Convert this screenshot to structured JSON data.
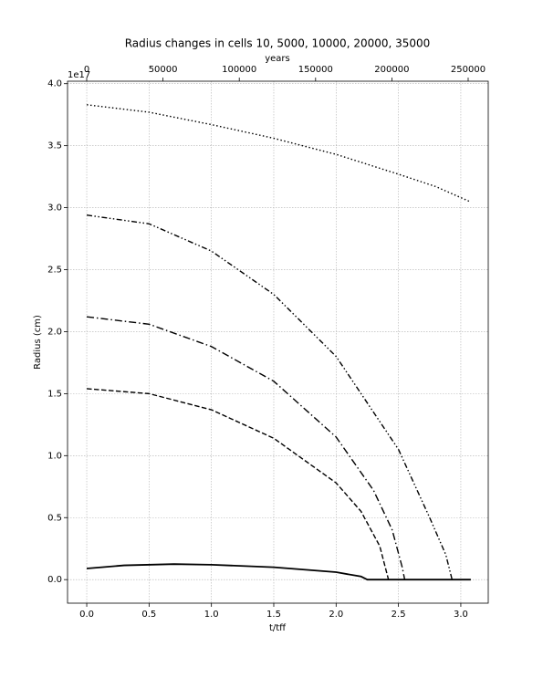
{
  "chart_data": {
    "type": "line",
    "title": "Radius changes in cells 10, 5000, 10000, 20000, 35000",
    "xlabel": "t/tff",
    "ylabel": "Radius (cm)",
    "x2label": "years",
    "y_offset_label": "1e17",
    "xlim": [
      -0.154,
      3.22
    ],
    "xticks": [
      {
        "value": 0,
        "label": "0.0"
      },
      {
        "value": 0.5,
        "label": "0.5"
      },
      {
        "value": 1,
        "label": "1.0"
      },
      {
        "value": 1.5,
        "label": "1.5"
      },
      {
        "value": 2,
        "label": "2.0"
      },
      {
        "value": 2.5,
        "label": "2.5"
      },
      {
        "value": 3,
        "label": "3.0"
      }
    ],
    "x2lim": [
      -12560,
      263160
    ],
    "x2ticks": [
      0,
      50000,
      100000,
      150000,
      200000,
      250000
    ],
    "ylim": [
      -0.19,
      4.02
    ],
    "yticks": [
      {
        "value": 0,
        "label": "0.0"
      },
      {
        "value": 0.5,
        "label": "0.5"
      },
      {
        "value": 1,
        "label": "1.0"
      },
      {
        "value": 1.5,
        "label": "1.5"
      },
      {
        "value": 2,
        "label": "2.0"
      },
      {
        "value": 2.5,
        "label": "2.5"
      },
      {
        "value": 3,
        "label": "3.0"
      },
      {
        "value": 3.5,
        "label": "3.5"
      },
      {
        "value": 4,
        "label": "4.0"
      }
    ],
    "grid": true,
    "series": [
      {
        "color": "#000000",
        "linestyle": "dotted",
        "x": [
          0,
          0.5,
          1.0,
          1.5,
          2.0,
          2.5,
          2.8,
          3.07
        ],
        "values": [
          3.83,
          3.77,
          3.67,
          3.56,
          3.43,
          3.27,
          3.17,
          3.05
        ]
      },
      {
        "color": "#000000",
        "linestyle": "dashdotdot",
        "x": [
          0,
          0.5,
          1.0,
          1.5,
          2.0,
          2.5,
          2.75,
          2.88,
          2.93
        ],
        "values": [
          2.94,
          2.87,
          2.65,
          2.3,
          1.8,
          1.05,
          0.5,
          0.2,
          0
        ]
      },
      {
        "color": "#000000",
        "linestyle": "dashdot",
        "x": [
          0,
          0.5,
          1.0,
          1.5,
          2.0,
          2.3,
          2.45,
          2.53,
          2.55
        ],
        "values": [
          2.12,
          2.06,
          1.88,
          1.6,
          1.15,
          0.72,
          0.4,
          0.1,
          0
        ]
      },
      {
        "color": "#000000",
        "linestyle": "dashed",
        "x": [
          0,
          0.5,
          1.0,
          1.5,
          2.0,
          2.2,
          2.35,
          2.42
        ],
        "values": [
          1.54,
          1.5,
          1.37,
          1.14,
          0.78,
          0.55,
          0.27,
          0
        ]
      },
      {
        "color": "#000000",
        "linestyle": "solid",
        "x": [
          0,
          0.3,
          0.7,
          1.0,
          1.5,
          2.0,
          2.2,
          2.25,
          3.08
        ],
        "values": [
          0.09,
          0.115,
          0.125,
          0.12,
          0.1,
          0.06,
          0.025,
          0,
          0
        ]
      }
    ]
  }
}
